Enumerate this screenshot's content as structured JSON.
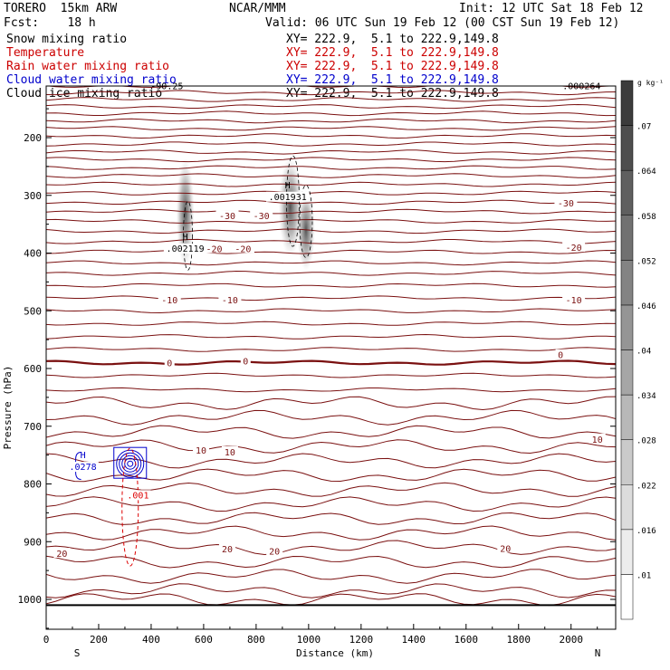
{
  "header": {
    "model": "TORERO  15km ARW",
    "org": "NCAR/MMM",
    "init": "Init: 12 UTC Sat 18 Feb 12",
    "fcst": "Fcst:    18 h",
    "valid": "Valid: 06 UTC Sun 19 Feb 12 (00 CST Sun 19 Feb 12)",
    "fields": [
      {
        "name": "Snow mixing ratio",
        "xy": "XY= 222.9,  5.1 to 222.9,149.8",
        "color": "#000000"
      },
      {
        "name": "Temperature",
        "xy": "XY= 222.9,  5.1 to 222.9,149.8",
        "color": "#cc0000"
      },
      {
        "name": "Rain water mixing ratio",
        "xy": "XY= 222.9,  5.1 to 222.9,149.8",
        "color": "#cc0000"
      },
      {
        "name": "Cloud water mixing ratio",
        "xy": "XY= 222.9,  5.1 to 222.9,149.8",
        "color": "#0000cc"
      },
      {
        "name": "Cloud ice mixing ratio",
        "xy": "XY= 222.9,  5.1 to 222.9,149.8",
        "color": "#000000"
      }
    ]
  },
  "chart_data": {
    "type": "cross-section",
    "xlabel": "Distance (km)",
    "ylabel": "Pressure (hPa)",
    "xlim": [
      0,
      2170
    ],
    "ylim": [
      1050,
      100
    ],
    "x_ticks": [
      0,
      200,
      400,
      600,
      800,
      1000,
      1200,
      1400,
      1600,
      1800,
      2000
    ],
    "y_ticks": [
      200,
      300,
      400,
      500,
      600,
      700,
      800,
      900,
      1000
    ],
    "x_end_labels": {
      "left": "S",
      "right": "N"
    },
    "colorbar": {
      "unit": "g kg⁻¹",
      "ticks": [
        ".01",
        ".016",
        ".022",
        ".028",
        ".034",
        ".04",
        ".046",
        ".052",
        ".058",
        ".064",
        ".07"
      ]
    },
    "temperature_isotherm_levels_hPa": [
      110,
      122,
      134,
      146,
      158,
      171,
      184,
      197,
      211,
      225,
      238,
      252,
      266,
      281,
      296,
      312,
      328,
      345,
      362,
      380,
      398,
      417,
      435,
      456,
      478,
      500,
      522,
      545,
      567,
      590,
      612,
      637,
      660,
      685,
      710,
      735,
      760,
      785,
      810,
      835,
      860,
      885,
      910,
      935,
      960,
      985,
      1000
    ],
    "zero_isotherm_hPa": 588,
    "temperature_labels": [
      {
        "text": "-30",
        "x": 690,
        "p": 335
      },
      {
        "text": "-30",
        "x": 820,
        "p": 335
      },
      {
        "text": "-30",
        "x": 1980,
        "p": 313
      },
      {
        "text": "-20",
        "x": 640,
        "p": 392
      },
      {
        "text": "-20",
        "x": 750,
        "p": 392
      },
      {
        "text": "-20",
        "x": 2010,
        "p": 390
      },
      {
        "text": "-10",
        "x": 470,
        "p": 481
      },
      {
        "text": "-10",
        "x": 700,
        "p": 481
      },
      {
        "text": "-10",
        "x": 2010,
        "p": 481
      },
      {
        "text": "0",
        "x": 470,
        "p": 590
      },
      {
        "text": "0",
        "x": 760,
        "p": 587
      },
      {
        "text": "0",
        "x": 1960,
        "p": 576
      },
      {
        "text": "10",
        "x": 590,
        "p": 741
      },
      {
        "text": "10",
        "x": 700,
        "p": 744
      },
      {
        "text": "10",
        "x": 2100,
        "p": 722
      },
      {
        "text": "20",
        "x": 60,
        "p": 920
      },
      {
        "text": "20",
        "x": 690,
        "p": 912
      },
      {
        "text": "20",
        "x": 870,
        "p": 916
      },
      {
        "text": "20",
        "x": 1750,
        "p": 911
      }
    ],
    "top_labels": [
      {
        "text": "-90.25",
        "x": 460,
        "p": 110
      },
      {
        "text": ".000264",
        "x": 2040,
        "p": 110
      }
    ],
    "maxima": [
      {
        "field": "snow",
        "label": "H",
        "value": ".002119",
        "x": 530,
        "p": 390
      },
      {
        "field": "snow",
        "label": "H",
        "value": ".001931",
        "x": 920,
        "p": 300
      },
      {
        "field": "cloud water",
        "label": "H",
        "value": ".0278",
        "x": 140,
        "p": 768
      },
      {
        "field": "rain",
        "label": "",
        "value": ".001",
        "x": 350,
        "p": 817
      }
    ],
    "ground_pressure_hPa": 1010
  },
  "colors": {
    "isotherm": "#7a1010",
    "zero_isotherm": "#7a1010",
    "cloud_water": "#0000cc",
    "rain": "#dd0000",
    "snow_contour": "#000000"
  }
}
